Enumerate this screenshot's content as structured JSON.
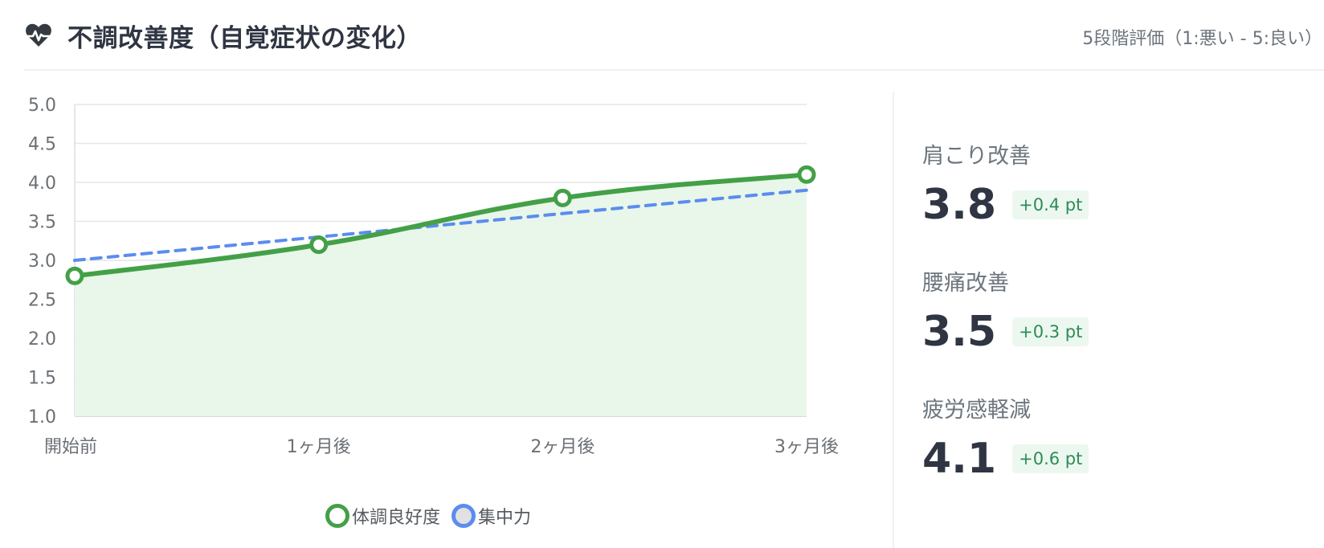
{
  "header": {
    "title": "不調改善度（自覚症状の変化）",
    "scale_note": "5段階評価（1:悪い - 5:良い）",
    "icon": "heart-pulse-icon"
  },
  "chart_data": {
    "type": "line",
    "categories": [
      "開始前",
      "1ヶ月後",
      "2ヶ月後",
      "3ヶ月後"
    ],
    "series": [
      {
        "name": "体調良好度",
        "values": [
          2.8,
          3.2,
          3.8,
          4.1
        ],
        "color": "#43a047",
        "style": "solid",
        "fill": "#e8f5e9",
        "markers": true
      },
      {
        "name": "集中力",
        "values": [
          3.0,
          3.3,
          3.6,
          3.9
        ],
        "color": "#5b8def",
        "style": "dashed",
        "markers": false
      }
    ],
    "ylim": [
      1.0,
      5.0
    ],
    "yticks": [
      "1.0",
      "1.5",
      "2.0",
      "2.5",
      "3.0",
      "3.5",
      "4.0",
      "4.5",
      "5.0"
    ],
    "grid": true,
    "legend": "bottom",
    "title": "",
    "xlabel": "",
    "ylabel": ""
  },
  "legend": {
    "items": [
      {
        "label": "体調良好度",
        "color": "#43a047"
      },
      {
        "label": "集中力",
        "color": "#5b8def"
      }
    ]
  },
  "stats": [
    {
      "label": "肩こり改善",
      "value": "3.8",
      "delta": "+0.4 pt"
    },
    {
      "label": "腰痛改善",
      "value": "3.5",
      "delta": "+0.3 pt"
    },
    {
      "label": "疲労感軽減",
      "value": "4.1",
      "delta": "+0.6 pt"
    }
  ],
  "colors": {
    "accent_green": "#43a047",
    "accent_blue": "#5b8def",
    "delta_green": "#2e8b57",
    "delta_bg": "#ecf8ef"
  }
}
